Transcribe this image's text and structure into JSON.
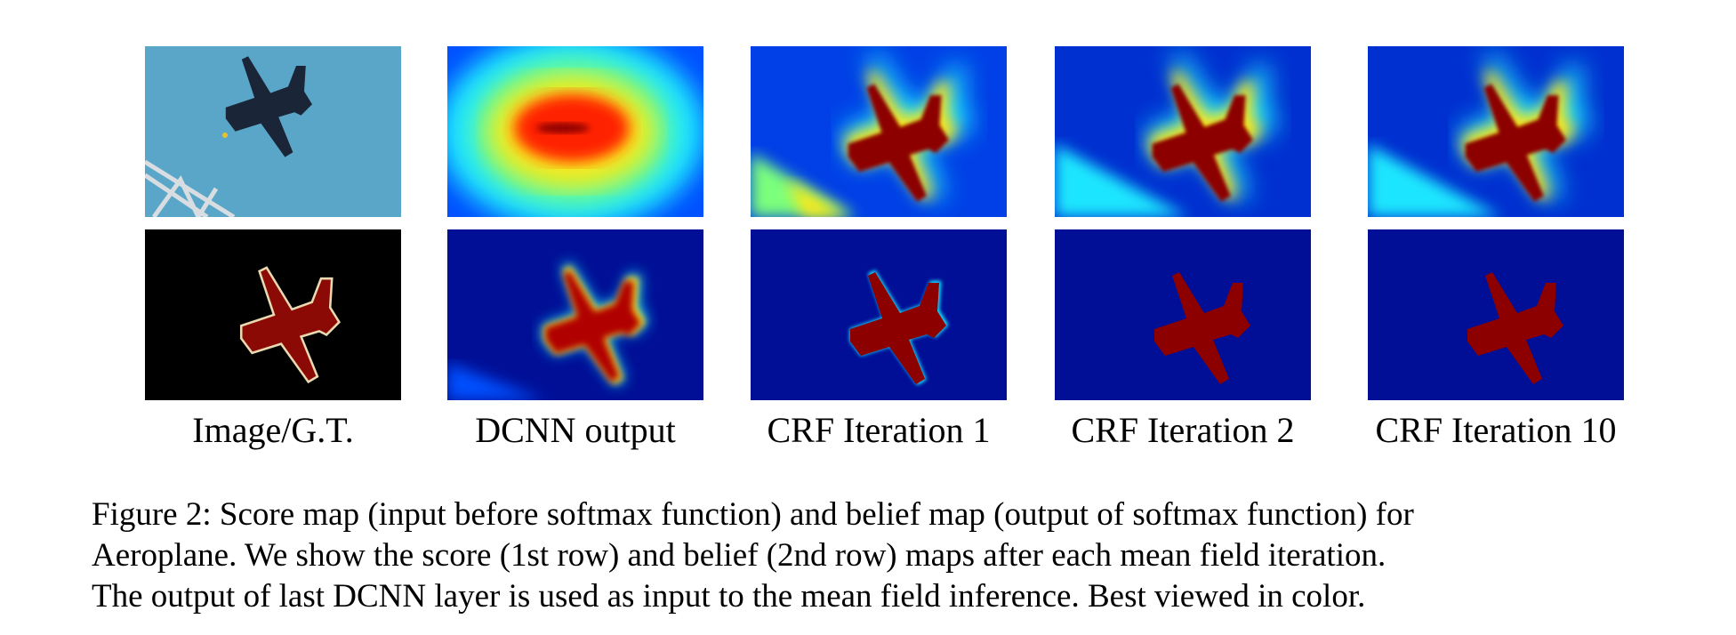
{
  "figure": {
    "columns": [
      {
        "label": "Image/G.T."
      },
      {
        "label": "DCNN output"
      },
      {
        "label": "CRF Iteration 1"
      },
      {
        "label": "CRF Iteration 2"
      },
      {
        "label": "CRF Iteration 10"
      }
    ],
    "rows": [
      "score",
      "belief"
    ],
    "caption": {
      "line1": "Figure 2: Score map (input before softmax function) and belief map (output of softmax function) for",
      "line2": "Aeroplane. We show the score (1st row) and belief (2nd row) maps after each mean field iteration.",
      "line3": "The output of last DCNN layer is used as input to the mean field inference. Best viewed in color."
    }
  },
  "colors": {
    "sky": "#5aa6c8",
    "jet_dark_blue": "#000f96",
    "jet_blue": "#0050ff",
    "jet_cyan": "#1ee6ff",
    "jet_yellow": "#ffe619",
    "jet_red": "#c80000",
    "gt_fill": "#8c0a06",
    "gt_outline": "#e8d9b0"
  }
}
